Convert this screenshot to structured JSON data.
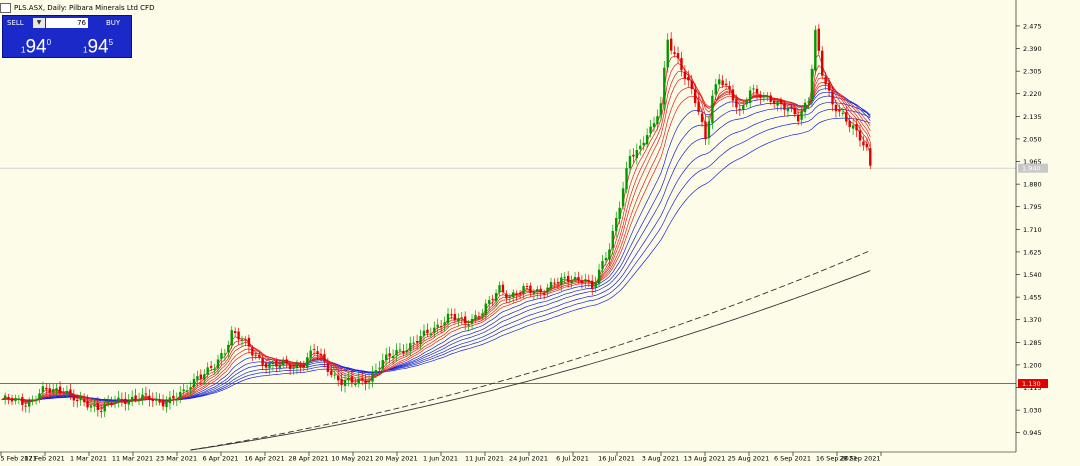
{
  "header": {
    "symbol_title": "PLS.ASX, Daily:  Pilbara Minerals Ltd CFD"
  },
  "trade_panel": {
    "sell_label": "SELL",
    "buy_label": "BUY",
    "volume": "76",
    "sell_big": "94",
    "sell_small": "1",
    "sell_sup": "0",
    "buy_big": "94",
    "buy_small": "1",
    "buy_sup": "5"
  },
  "colors": {
    "background": "#fcfce8",
    "bull_candle": "#009a00",
    "bear_candle": "#e00000",
    "ema_fast": "#e02020",
    "ema_slow": "#1a24d8",
    "ma_long": "#333333",
    "level_line": "#e00000",
    "price_line": "#c0c0c0"
  },
  "chart_data": {
    "type": "candlestick",
    "title": "PLS.ASX, Daily:  Pilbara Minerals Ltd CFD",
    "ylim": [
      0.88,
      2.55
    ],
    "y_ticks": [
      "2.475",
      "2.390",
      "2.305",
      "2.220",
      "2.135",
      "2.050",
      "1.965",
      "1.880",
      "1.795",
      "1.710",
      "1.625",
      "1.540",
      "1.455",
      "1.370",
      "1.285",
      "1.200",
      "1.115",
      "1.030",
      "0.945"
    ],
    "x_ticks": [
      "5 Feb 2021",
      "17 Feb 2021",
      "1 Mar 2021",
      "11 Mar 2021",
      "23 Mar 2021",
      "6 Apr 2021",
      "16 Apr 2021",
      "28 Apr 2021",
      "10 May 2021",
      "20 May 2021",
      "1 Jun 2021",
      "11 Jun 2021",
      "24 Jun 2021",
      "6 Jul 2021",
      "16 Jul 2021",
      "3 Aug 2021",
      "13 Aug 2021",
      "25 Aug 2021",
      "6 Sep 2021",
      "16 Sep 2021",
      "28 Sep 2021"
    ],
    "current_price_label": "1.940",
    "level_price": 1.13,
    "level_price_label": "1.130",
    "close_path": [
      [
        0,
        1.07
      ],
      [
        8,
        1.06
      ],
      [
        12,
        1.1
      ],
      [
        18,
        1.11
      ],
      [
        22,
        1.06
      ],
      [
        26,
        1.05
      ],
      [
        29,
        1.04
      ],
      [
        36,
        1.07
      ],
      [
        40,
        1.08
      ],
      [
        46,
        1.06
      ],
      [
        49,
        1.07
      ],
      [
        53,
        1.09
      ],
      [
        57,
        1.16
      ],
      [
        62,
        1.19
      ],
      [
        65,
        1.25
      ],
      [
        67,
        1.33
      ],
      [
        70,
        1.3
      ],
      [
        73,
        1.24
      ],
      [
        76,
        1.21
      ],
      [
        81,
        1.2
      ],
      [
        85,
        1.19
      ],
      [
        88,
        1.21
      ],
      [
        91,
        1.26
      ],
      [
        93,
        1.22
      ],
      [
        96,
        1.17
      ],
      [
        99,
        1.14
      ],
      [
        103,
        1.13
      ],
      [
        107,
        1.15
      ],
      [
        110,
        1.2
      ],
      [
        115,
        1.25
      ],
      [
        120,
        1.28
      ],
      [
        125,
        1.33
      ],
      [
        130,
        1.38
      ],
      [
        135,
        1.36
      ],
      [
        140,
        1.4
      ],
      [
        142,
        1.43
      ],
      [
        145,
        1.49
      ],
      [
        148,
        1.46
      ],
      [
        152,
        1.48
      ],
      [
        157,
        1.48
      ],
      [
        162,
        1.51
      ],
      [
        166,
        1.53
      ],
      [
        170,
        1.52
      ],
      [
        172,
        1.48
      ],
      [
        174,
        1.55
      ],
      [
        177,
        1.65
      ],
      [
        180,
        1.8
      ],
      [
        183,
        1.98
      ],
      [
        186,
        2.02
      ],
      [
        188,
        2.08
      ],
      [
        190,
        2.1
      ],
      [
        192,
        2.18
      ],
      [
        194,
        2.42
      ],
      [
        197,
        2.35
      ],
      [
        200,
        2.26
      ],
      [
        203,
        2.15
      ],
      [
        205,
        2.05
      ],
      [
        207,
        2.22
      ],
      [
        209,
        2.28
      ],
      [
        212,
        2.22
      ],
      [
        215,
        2.15
      ],
      [
        218,
        2.24
      ],
      [
        222,
        2.2
      ],
      [
        226,
        2.19
      ],
      [
        229,
        2.17
      ],
      [
        232,
        2.12
      ],
      [
        235,
        2.2
      ],
      [
        237,
        2.46
      ],
      [
        239,
        2.3
      ],
      [
        242,
        2.17
      ],
      [
        245,
        2.14
      ],
      [
        248,
        2.1
      ],
      [
        250,
        2.05
      ],
      [
        252,
        2.0
      ],
      [
        253,
        1.94
      ]
    ],
    "overlays": [
      {
        "name": "EMA ribbon (short)",
        "type": "line",
        "count": 6
      },
      {
        "name": "EMA ribbon (long)",
        "type": "line",
        "count": 6
      },
      {
        "name": "MA dashed",
        "type": "line",
        "start": 0.88,
        "end": 1.63
      },
      {
        "name": "MA solid",
        "type": "line",
        "start": 0.88,
        "end": 1.555
      }
    ]
  }
}
